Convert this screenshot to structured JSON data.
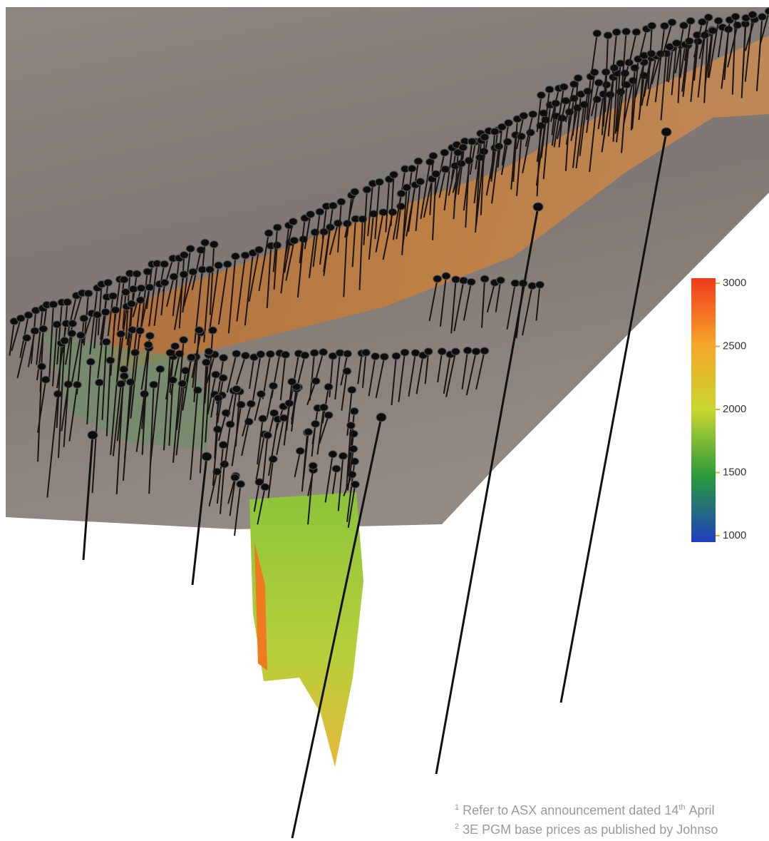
{
  "colorbar": {
    "lim": [
      1000,
      3000
    ],
    "ticks": [
      1000,
      1500,
      2000,
      2500,
      3000
    ],
    "colors": [
      "#1f3fbf",
      "#2a9a3a",
      "#c8d630",
      "#f7a52a",
      "#f03a1c"
    ]
  },
  "footnotes": [
    {
      "marker": "1",
      "text": "Refer to ASX announcement dated 14",
      "sup": "th",
      "tail": "April"
    },
    {
      "marker": "2",
      "text": "3E PGM base prices as published by Johnso"
    }
  ]
}
